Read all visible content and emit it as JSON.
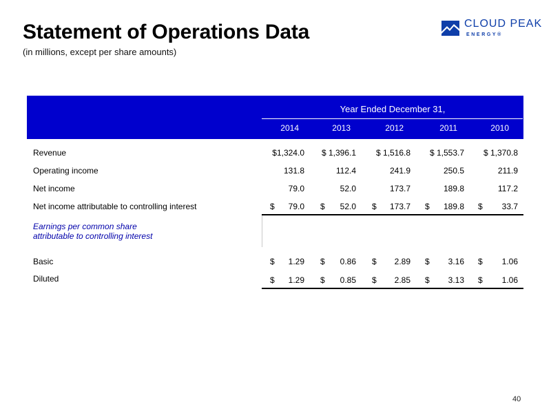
{
  "page": {
    "title": "Statement of Operations Data",
    "subtitle": "(in millions, except per share amounts)",
    "page_number": "40"
  },
  "logo": {
    "name": "CLOUD PEAK",
    "sub": "ENERGY®"
  },
  "table": {
    "header_caption": "Year Ended December 31,",
    "years": [
      "2014",
      "2013",
      "2012",
      "2011",
      "2010"
    ],
    "rows": [
      {
        "label": "Revenue",
        "values": [
          "$1,324.0",
          "$ 1,396.1",
          "$ 1,516.8",
          "$ 1,553.7",
          "$ 1,370.8"
        ]
      },
      {
        "label": "Operating income",
        "values": [
          "131.8",
          "112.4",
          "241.9",
          "250.5",
          "211.9"
        ]
      },
      {
        "label": "Net income",
        "values": [
          "79.0",
          "52.0",
          "173.7",
          "189.8",
          "117.2"
        ]
      },
      {
        "label": "Net income attributable to controlling interest",
        "currency": "$",
        "values": [
          "79.0",
          "52.0",
          "173.7",
          "189.8",
          "33.7"
        ]
      }
    ],
    "eps_section_title_line1": "Earnings per common share",
    "eps_section_title_line2": "attributable to controlling interest",
    "eps_rows": [
      {
        "label": "Basic",
        "currency": "$",
        "values": [
          "1.29",
          "0.86",
          "2.89",
          "3.16",
          "1.06"
        ]
      },
      {
        "label": "Diluted",
        "currency": "$",
        "values": [
          "1.29",
          "0.85",
          "2.85",
          "3.13",
          "1.06"
        ]
      }
    ]
  },
  "colors": {
    "header_band": "#0000cd",
    "logo_blue": "#0e3ea9",
    "eps_title": "#0000aa"
  }
}
